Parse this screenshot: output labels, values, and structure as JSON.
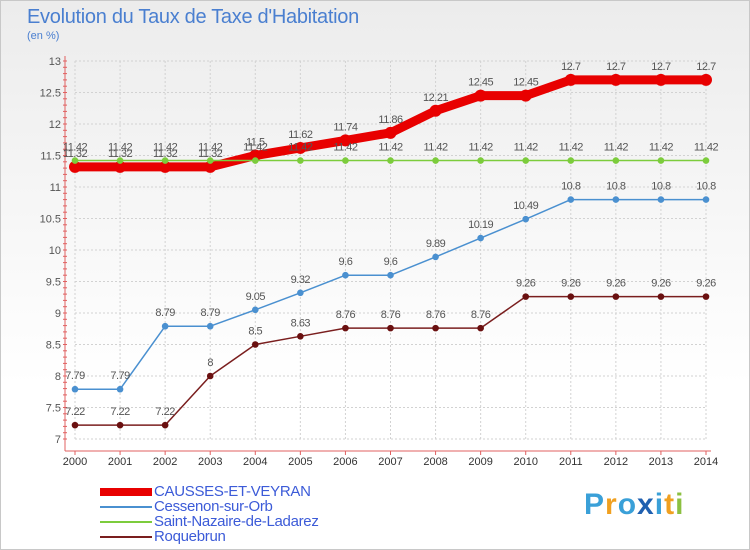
{
  "header": {
    "title": "Evolution du Taux de Taxe d'Habitation",
    "subtitle": "(en %)"
  },
  "brand": {
    "letters": [
      "P",
      "r",
      "o",
      "x",
      "i",
      "t",
      "i"
    ],
    "colors": [
      "#3aa0d8",
      "#f0a020",
      "#3aa0d8",
      "#2060b0",
      "#3aa0d8",
      "#f0a020",
      "#8cc040"
    ]
  },
  "chart_data": {
    "type": "line",
    "title": "Evolution du Taux de Taxe d'Habitation",
    "ylabel": "(en %)",
    "xlabel": "",
    "ylim": [
      7,
      13
    ],
    "yticks": [
      7,
      7.5,
      8,
      8.5,
      9,
      9.5,
      10,
      10.5,
      11,
      11.5,
      12,
      12.5,
      13
    ],
    "x": [
      "2000",
      "2001",
      "2002",
      "2003",
      "2004",
      "2005",
      "2006",
      "2007",
      "2008",
      "2009",
      "2010",
      "2011",
      "2012",
      "2013",
      "2014"
    ],
    "grid": true,
    "legend_position": "bottom-left",
    "series": [
      {
        "name": "CAUSSES-ET-VEYRAN",
        "color": "#e80000",
        "values": [
          11.32,
          11.32,
          11.32,
          11.32,
          11.5,
          11.62,
          11.74,
          11.86,
          12.21,
          12.45,
          12.45,
          12.7,
          12.7,
          12.7,
          12.7
        ],
        "labels": [
          "11.32",
          "11.32",
          "11.32",
          "11.32",
          "11.5",
          "11.62",
          "11.74",
          "11.86",
          "12.21",
          "12.45",
          "12.45",
          "12.7",
          "12.7",
          "12.7",
          "12.7"
        ]
      },
      {
        "name": "Cessenon-sur-Orb",
        "color": "#4a90d0",
        "values": [
          7.79,
          7.79,
          8.79,
          8.79,
          9.05,
          9.32,
          9.6,
          9.6,
          9.89,
          10.19,
          10.49,
          10.8,
          10.8,
          10.8,
          10.8
        ],
        "labels": [
          "7.79",
          "7.79",
          "8.79",
          "8.79",
          "9.05",
          "9.32",
          "9.6",
          "9.6",
          "9.89",
          "10.19",
          "10.49",
          "10.8",
          "10.8",
          "10.8",
          "10.8"
        ]
      },
      {
        "name": "Saint-Nazaire-de-Ladarez",
        "color": "#7ccc3c",
        "values": [
          11.42,
          11.42,
          11.42,
          11.42,
          11.42,
          11.42,
          11.42,
          11.42,
          11.42,
          11.42,
          11.42,
          11.42,
          11.42,
          11.42,
          11.42
        ],
        "labels": [
          "11.42",
          "11.42",
          "11.42",
          "11.42",
          "11.42",
          "11.42",
          "11.42",
          "11.42",
          "11.42",
          "11.42",
          "11.42",
          "11.42",
          "11.42",
          "11.42",
          "11.42"
        ]
      },
      {
        "name": "Roquebrun",
        "color": "#7a1e1e",
        "values": [
          7.22,
          7.22,
          7.22,
          8,
          8.5,
          8.63,
          8.76,
          8.76,
          8.76,
          8.76,
          9.26,
          9.26,
          9.26,
          9.26,
          9.26
        ],
        "labels": [
          "7.22",
          "7.22",
          "7.22",
          "8",
          "8.5",
          "8.63",
          "8.76",
          "8.76",
          "8.76",
          "8.76",
          "9.26",
          "9.26",
          "9.26",
          "9.26",
          "9.26"
        ]
      }
    ]
  }
}
